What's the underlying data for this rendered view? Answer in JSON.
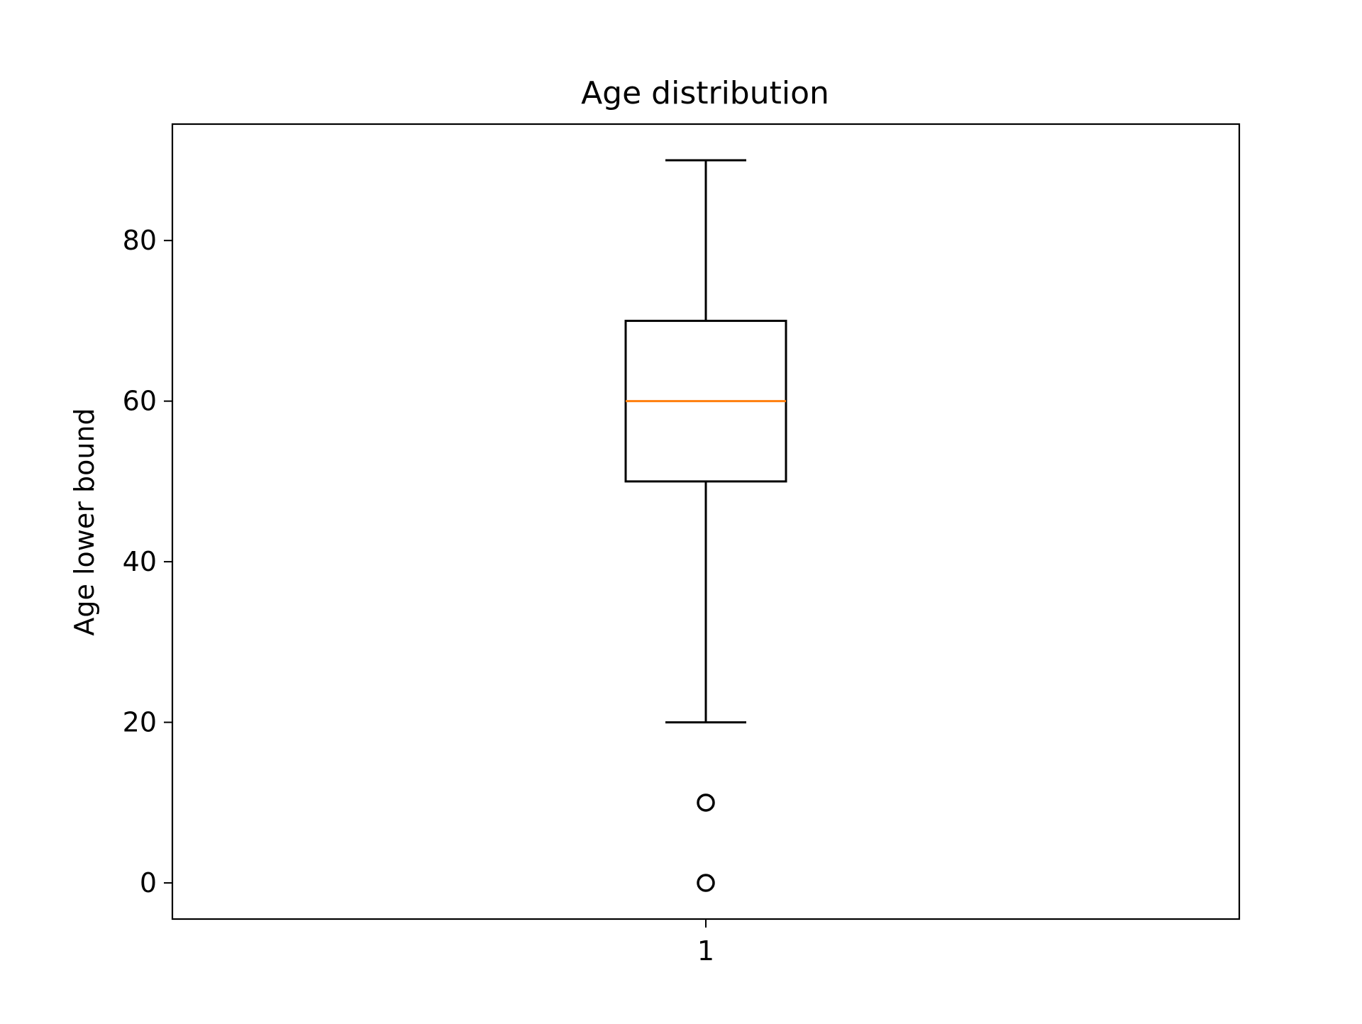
{
  "chart_data": {
    "type": "box",
    "title": "Age distribution",
    "xlabel": "",
    "ylabel": "Age lower bound",
    "categories": [
      "1"
    ],
    "ylim": [
      -4.5,
      94.5
    ],
    "yticks": [
      0,
      20,
      40,
      60,
      80
    ],
    "ytick_labels": [
      "0",
      "20",
      "40",
      "60",
      "80"
    ],
    "grid": false,
    "boxes": [
      {
        "category": "1",
        "whisker_low": 20,
        "q1": 50,
        "median": 60,
        "q3": 70,
        "whisker_high": 90,
        "outliers": [
          10,
          0
        ]
      }
    ],
    "colors": {
      "box": "#000000",
      "median": "#ff7f0e",
      "outlier": "#000000"
    }
  }
}
